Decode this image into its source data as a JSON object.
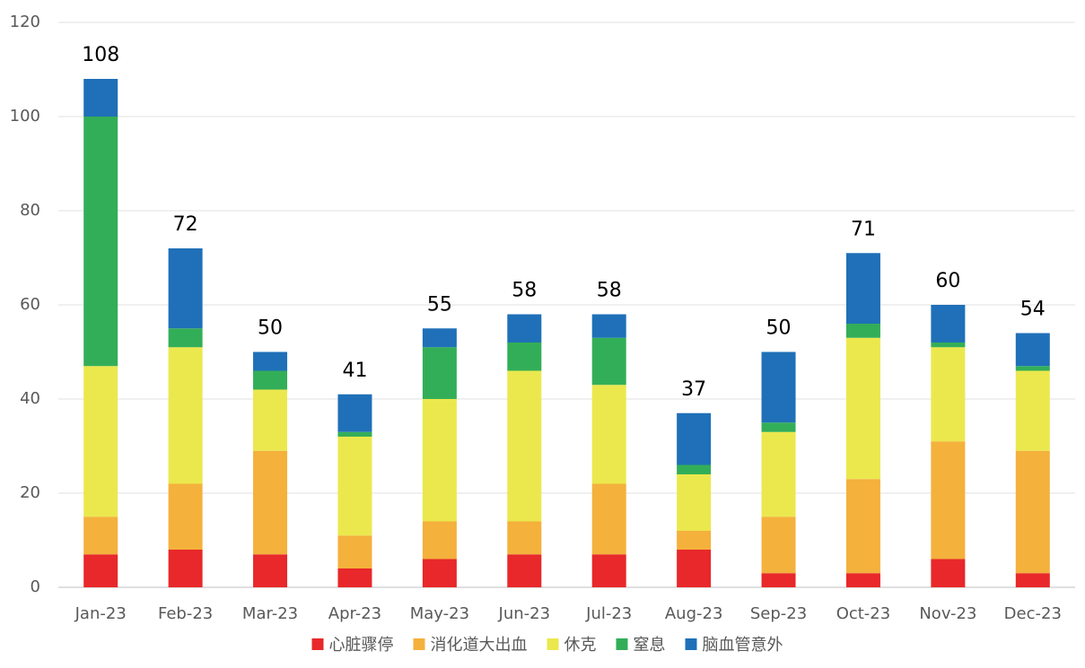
{
  "chart_data": {
    "type": "stacked-bar",
    "categories": [
      "Jan-23",
      "Feb-23",
      "Mar-23",
      "Apr-23",
      "May-23",
      "Jun-23",
      "Jul-23",
      "Aug-23",
      "Sep-23",
      "Oct-23",
      "Nov-23",
      "Dec-23"
    ],
    "series": [
      {
        "name": "心脏骤停",
        "color": "#e8282a",
        "values": [
          7,
          8,
          7,
          4,
          6,
          7,
          7,
          8,
          3,
          3,
          6,
          3
        ]
      },
      {
        "name": "消化道大出血",
        "color": "#f4b13c",
        "values": [
          8,
          14,
          22,
          7,
          8,
          7,
          15,
          4,
          12,
          20,
          25,
          26
        ]
      },
      {
        "name": "休克",
        "color": "#ebe84e",
        "values": [
          32,
          29,
          13,
          21,
          26,
          32,
          21,
          12,
          18,
          30,
          20,
          17
        ]
      },
      {
        "name": "窒息",
        "color": "#33ae58",
        "values": [
          53,
          4,
          4,
          1,
          11,
          6,
          10,
          2,
          2,
          3,
          1,
          1
        ]
      },
      {
        "name": "脑血管意外",
        "color": "#1f70b8",
        "values": [
          8,
          17,
          4,
          8,
          4,
          6,
          5,
          11,
          15,
          15,
          8,
          7
        ]
      }
    ],
    "totals": [
      108,
      72,
      50,
      41,
      55,
      58,
      58,
      37,
      50,
      71,
      60,
      54
    ],
    "ylim": [
      0,
      120
    ],
    "yticks": [
      0,
      20,
      40,
      60,
      80,
      100,
      120
    ],
    "grid": true,
    "legend": "bottom"
  }
}
